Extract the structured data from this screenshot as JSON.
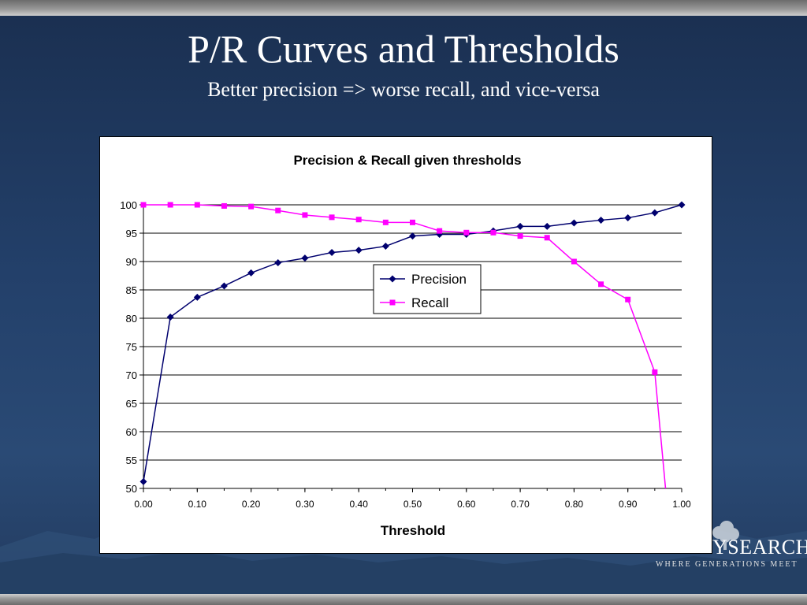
{
  "slide": {
    "title": "P/R Curves and Thresholds",
    "subtitle": "Better precision => worse recall, and vice-versa"
  },
  "logo": {
    "text": "YSEARCH",
    "tagline": "WHERE GENERATIONS MEET"
  },
  "colors": {
    "precision": "#00006e",
    "recall": "#ff00ff",
    "background": "#1f3556"
  },
  "chart_data": {
    "type": "line",
    "title": "Precision & Recall given thresholds",
    "xlabel": "Threshold",
    "ylabel": "",
    "xlim": [
      0,
      1
    ],
    "ylim": [
      50,
      100
    ],
    "x_ticks": [
      "0.00",
      "0.10",
      "0.20",
      "0.30",
      "0.40",
      "0.50",
      "0.60",
      "0.70",
      "0.80",
      "0.90",
      "1.00"
    ],
    "y_ticks": [
      "50",
      "55",
      "60",
      "65",
      "70",
      "75",
      "80",
      "85",
      "90",
      "95",
      "100"
    ],
    "grid": "horizontal",
    "legend": "center",
    "series": [
      {
        "name": "Precision",
        "marker": "diamond",
        "x": [
          0.0,
          0.05,
          0.1,
          0.15,
          0.2,
          0.25,
          0.3,
          0.35,
          0.4,
          0.45,
          0.5,
          0.55,
          0.6,
          0.65,
          0.7,
          0.75,
          0.8,
          0.85,
          0.9,
          0.95,
          1.0
        ],
        "y": [
          51.2,
          80.2,
          83.7,
          85.7,
          88.0,
          89.8,
          90.6,
          91.6,
          92.0,
          92.7,
          94.5,
          94.8,
          94.8,
          95.4,
          96.2,
          96.2,
          96.8,
          97.3,
          97.7,
          98.6,
          100.0
        ]
      },
      {
        "name": "Recall",
        "marker": "square",
        "x": [
          0.0,
          0.05,
          0.1,
          0.15,
          0.2,
          0.25,
          0.3,
          0.35,
          0.4,
          0.45,
          0.5,
          0.55,
          0.6,
          0.65,
          0.7,
          0.75,
          0.8,
          0.85,
          0.9,
          0.95,
          0.97
        ],
        "y": [
          100.0,
          100.0,
          100.0,
          99.8,
          99.7,
          99.0,
          98.2,
          97.8,
          97.4,
          96.9,
          96.9,
          95.4,
          95.1,
          95.1,
          94.5,
          94.2,
          90.0,
          86.0,
          83.3,
          70.5,
          50.0
        ]
      }
    ]
  }
}
